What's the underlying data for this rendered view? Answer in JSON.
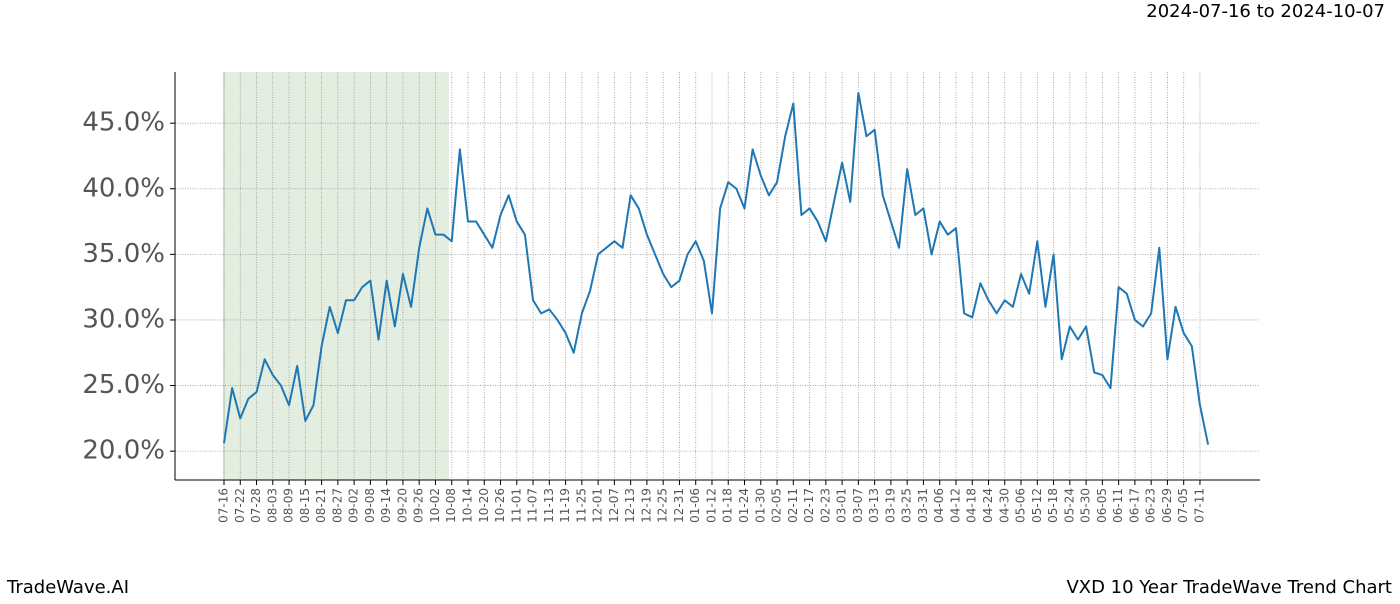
{
  "brand": "TradeWave.AI",
  "chart_data": {
    "type": "line",
    "title": "VXD 10 Year TradeWave Trend Chart",
    "subtitle": "2024-07-16 to 2024-10-07",
    "color": "#1f77b4",
    "highlight_color": "#e3eee0",
    "grid": true,
    "categories": [
      "07-16",
      null,
      "07-22",
      null,
      "07-28",
      null,
      "08-03",
      null,
      "08-09",
      null,
      "08-15",
      null,
      "08-21",
      null,
      "08-27",
      null,
      "09-02",
      null,
      "09-08",
      null,
      "09-14",
      null,
      "09-20",
      null,
      "09-26",
      null,
      "10-02",
      null,
      "10-08",
      null,
      "10-14",
      null,
      "10-20",
      null,
      "10-26",
      null,
      "11-01",
      null,
      "11-07",
      null,
      "11-13",
      null,
      "11-19",
      null,
      "11-25",
      null,
      "12-01",
      null,
      "12-07",
      null,
      "12-13",
      null,
      "12-19",
      null,
      "12-25",
      null,
      "12-31",
      null,
      "01-06",
      null,
      "01-12",
      null,
      "01-18",
      null,
      "01-24",
      null,
      "01-30",
      null,
      "02-05",
      null,
      "02-11",
      null,
      "02-17",
      null,
      "02-23",
      null,
      "03-01",
      null,
      "03-07",
      null,
      "03-13",
      null,
      "03-19",
      null,
      "03-25",
      null,
      "03-31",
      null,
      "04-06",
      null,
      "04-12",
      null,
      "04-18",
      null,
      "04-24",
      null,
      "04-30",
      null,
      "05-06",
      null,
      "05-12",
      null,
      "05-18",
      null,
      "05-24",
      null,
      "05-30",
      null,
      "06-05",
      null,
      "06-11",
      null,
      "06-17",
      null,
      "06-23",
      null,
      "06-29",
      null,
      "07-05",
      null,
      "07-11",
      null
    ],
    "values": [
      20.6,
      24.8,
      22.5,
      24.0,
      24.5,
      27.0,
      25.8,
      25.0,
      23.5,
      26.5,
      22.3,
      23.5,
      28.0,
      31.0,
      29.0,
      31.5,
      31.5,
      32.5,
      33.0,
      28.5,
      33.0,
      29.5,
      33.5,
      31.0,
      35.5,
      38.5,
      36.5,
      36.5,
      36.0,
      43.0,
      37.5,
      37.5,
      36.5,
      35.5,
      38.0,
      39.5,
      37.5,
      36.5,
      31.5,
      30.5,
      30.8,
      30.0,
      29.0,
      27.5,
      30.5,
      32.2,
      35.0,
      35.5,
      36.0,
      35.5,
      39.5,
      38.5,
      36.5,
      35.0,
      33.5,
      32.5,
      33.0,
      35.0,
      36.0,
      34.5,
      30.5,
      38.5,
      40.5,
      40.0,
      38.5,
      43.0,
      41.0,
      39.5,
      40.5,
      44.0,
      46.5,
      38.0,
      38.5,
      37.5,
      36.0,
      39.0,
      42.0,
      39.0,
      47.3,
      44.0,
      44.5,
      39.5,
      37.5,
      35.5,
      41.5,
      38.0,
      38.5,
      35.0,
      37.5,
      36.5,
      37.0,
      30.5,
      30.2,
      32.8,
      31.5,
      30.5,
      31.5,
      31.0,
      33.5,
      32.0,
      36.0,
      31.0,
      35.0,
      27.0,
      29.5,
      28.5,
      29.5,
      26.0,
      25.8,
      24.8,
      32.5,
      32.0,
      30.0,
      29.5,
      30.5,
      35.5,
      27.0,
      31.0,
      29.0,
      28.0,
      23.5,
      20.5
    ],
    "ylim": [
      17.8,
      48.9
    ],
    "yticks": [
      {
        "value": 20,
        "label": "20.0%"
      },
      {
        "value": 25,
        "label": "25.0%"
      },
      {
        "value": 30,
        "label": "30.0%"
      },
      {
        "value": 35,
        "label": "35.0%"
      },
      {
        "value": 40,
        "label": "40.0%"
      },
      {
        "value": 45,
        "label": "45.0%"
      }
    ]
  }
}
